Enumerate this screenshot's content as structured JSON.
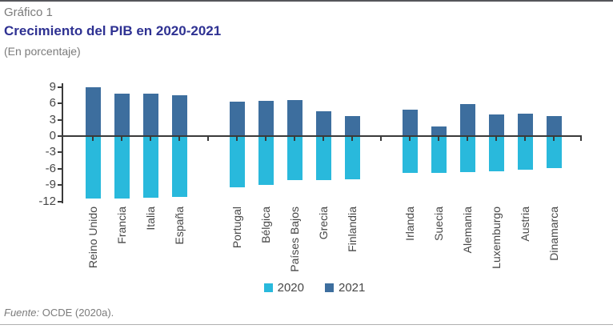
{
  "header": {
    "label": "Gráfico 1",
    "title": "Crecimiento del PIB en 2020-2021",
    "subtitle": "(En porcentaje)"
  },
  "footer": {
    "source_prefix": "Fuente:",
    "source_text": " OCDE (2020a)."
  },
  "chart_data": {
    "type": "bar",
    "title": "Crecimiento del PIB en 2020-2021",
    "xlabel": "",
    "ylabel": "En porcentaje",
    "ylim": [
      -12,
      9
    ],
    "yticks": [
      9,
      6,
      3,
      0,
      -3,
      -6,
      -9,
      -12
    ],
    "grid": false,
    "legend_position": "bottom",
    "categories": [
      "Reino Unido",
      "Francia",
      "Italia",
      "España",
      "Portugal",
      "Bélgica",
      "Países Bajos",
      "Grecia",
      "Finlandia",
      "Irlanda",
      "Suecia",
      "Alemania",
      "Luxemburgo",
      "Austria",
      "Dinamarca"
    ],
    "groups": [
      4,
      5,
      6
    ],
    "series": [
      {
        "name": "2020",
        "color": "#29B9DC",
        "values": [
          -11.5,
          -11.4,
          -11.3,
          -11.1,
          -9.4,
          -8.9,
          -8.0,
          -8.0,
          -7.9,
          -6.8,
          -6.7,
          -6.6,
          -6.5,
          -6.2,
          -5.8
        ]
      },
      {
        "name": "2021",
        "color": "#3D6E9E",
        "values": [
          9.0,
          7.7,
          7.7,
          7.5,
          6.3,
          6.4,
          6.6,
          4.5,
          3.7,
          4.8,
          1.7,
          5.8,
          3.9,
          4.1,
          3.6
        ]
      }
    ],
    "colors": {
      "axis_line": "#3A3A3A",
      "axis_text": "#474747",
      "title_navy": "#2E3192",
      "muted_gray": "#7B7B7B",
      "top_rule": "#55565B",
      "bottom_rule": "#AFAFAF"
    }
  }
}
